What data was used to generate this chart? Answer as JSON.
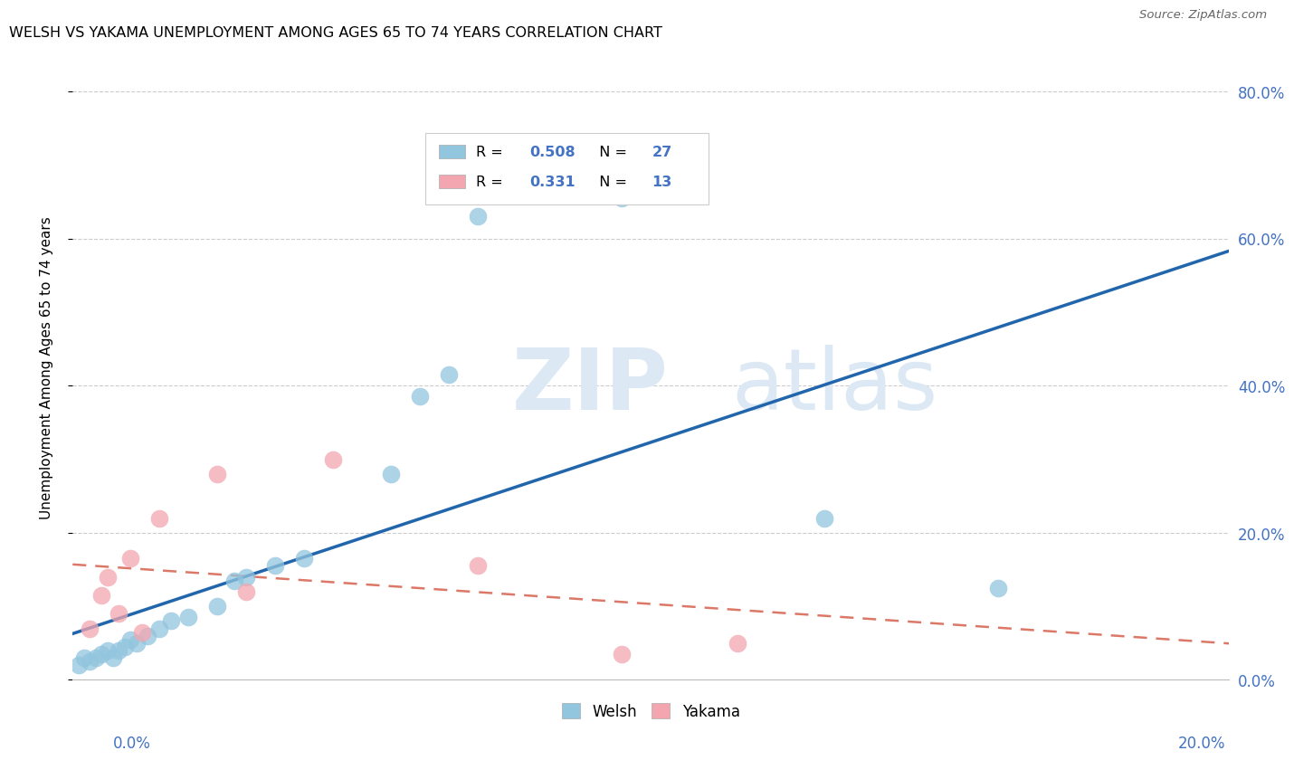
{
  "title": "WELSH VS YAKAMA UNEMPLOYMENT AMONG AGES 65 TO 74 YEARS CORRELATION CHART",
  "source": "Source: ZipAtlas.com",
  "ylabel": "Unemployment Among Ages 65 to 74 years",
  "xlim": [
    0.0,
    0.2
  ],
  "ylim": [
    0.0,
    0.85
  ],
  "yticks": [
    0.0,
    0.2,
    0.4,
    0.6,
    0.8
  ],
  "ytick_labels": [
    "",
    "20.0%",
    "40.0%",
    "60.0%",
    "80.0%"
  ],
  "right_ytick_labels": [
    "0.0%",
    "20.0%",
    "40.0%",
    "60.0%",
    "80.0%"
  ],
  "welsh_R": "0.508",
  "welsh_N": "27",
  "yakama_R": "0.331",
  "yakama_N": "13",
  "welsh_color": "#92c5de",
  "yakama_color": "#f4a6b0",
  "welsh_line_color": "#2166ac",
  "yakama_line_color": "#d6604d",
  "watermark_zip": "ZIP",
  "watermark_atlas": "atlas",
  "welsh_x": [
    0.001,
    0.002,
    0.003,
    0.004,
    0.005,
    0.006,
    0.007,
    0.008,
    0.009,
    0.01,
    0.011,
    0.013,
    0.015,
    0.017,
    0.02,
    0.025,
    0.028,
    0.03,
    0.035,
    0.04,
    0.055,
    0.06,
    0.065,
    0.07,
    0.095,
    0.13,
    0.16
  ],
  "welsh_y": [
    0.02,
    0.03,
    0.025,
    0.03,
    0.035,
    0.04,
    0.03,
    0.04,
    0.045,
    0.055,
    0.05,
    0.06,
    0.07,
    0.08,
    0.085,
    0.1,
    0.135,
    0.14,
    0.155,
    0.165,
    0.28,
    0.385,
    0.415,
    0.63,
    0.655,
    0.22,
    0.125
  ],
  "yakama_x": [
    0.003,
    0.005,
    0.006,
    0.008,
    0.01,
    0.012,
    0.015,
    0.025,
    0.03,
    0.045,
    0.07,
    0.095,
    0.115
  ],
  "yakama_y": [
    0.07,
    0.115,
    0.14,
    0.09,
    0.165,
    0.065,
    0.22,
    0.28,
    0.12,
    0.3,
    0.155,
    0.035,
    0.05
  ],
  "background_color": "#ffffff",
  "grid_color": "#cccccc",
  "tick_color": "#4472c4"
}
